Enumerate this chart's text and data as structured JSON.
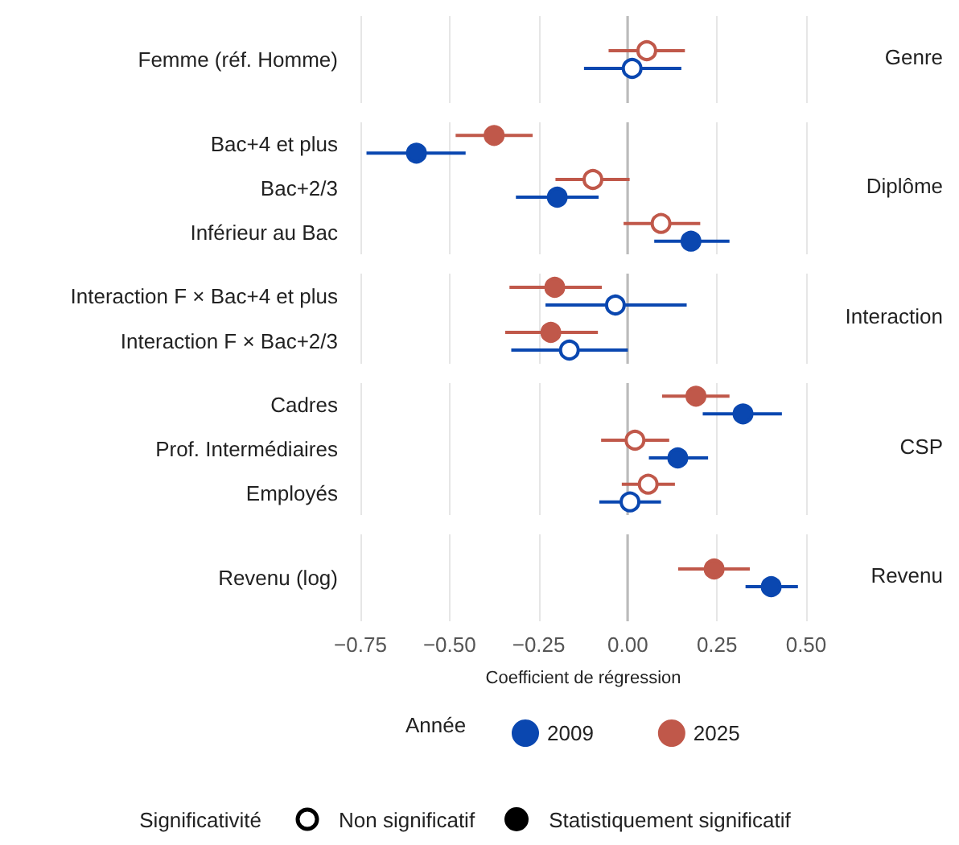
{
  "chart_data": [
    {
      "type": "scatter",
      "orientation": "horizontal",
      "categories": [
        "Femme (réf. Homme)"
      ],
      "y2label": "Genre",
      "xlim": [
        -0.75,
        0.5
      ],
      "xticks": [
        -0.75,
        -0.5,
        -0.25,
        0,
        0.25,
        0.5
      ],
      "tick_labels": "y",
      "grid": "x",
      "marker": "circle",
      "ref_lines": [
        {
          "axis": "x",
          "value": 0,
          "color": "#bbbbbb"
        }
      ],
      "series": [
        {
          "color": "#0a47b0",
          "values": [
            0.012
          ],
          "errors": [
            [
              -0.123,
              0.15
            ]
          ],
          "colors": [
            "#ffffff"
          ]
        },
        {
          "color": "#c0584a",
          "values": [
            0.053
          ],
          "errors": [
            [
              -0.054,
              0.16
            ]
          ],
          "colors": [
            "#ffffff"
          ]
        }
      ]
    },
    {
      "type": "scatter",
      "orientation": "horizontal",
      "categories": [
        "Bac+4 et plus",
        "Bac+2/3",
        "Inférieur au Bac"
      ],
      "y2label": "Diplôme",
      "xlim": [
        -0.75,
        0.5
      ],
      "xticks": [
        -0.75,
        -0.5,
        -0.25,
        0,
        0.25,
        0.5
      ],
      "tick_labels": "y",
      "grid": "x",
      "marker": "circle",
      "ref_lines": [
        {
          "axis": "x",
          "value": 0,
          "color": "#bbbbbb"
        }
      ],
      "series": [
        {
          "color": "#0a47b0",
          "values": [
            -0.593,
            -0.198,
            0.177
          ],
          "errors": [
            [
              -0.733,
              -0.455
            ],
            [
              -0.314,
              -0.082
            ],
            [
              0.074,
              0.285
            ]
          ],
          "colors": [
            "#0a47b0",
            "#0a47b0",
            "#0a47b0"
          ]
        },
        {
          "color": "#c0584a",
          "values": [
            -0.375,
            -0.098,
            0.093
          ],
          "errors": [
            [
              -0.483,
              -0.267
            ],
            [
              -0.203,
              0.005
            ],
            [
              -0.012,
              0.203
            ]
          ],
          "colors": [
            "#c0584a",
            "#ffffff",
            "#ffffff"
          ]
        }
      ]
    },
    {
      "type": "scatter",
      "orientation": "horizontal",
      "categories": [
        "Interaction F × Bac+4 et plus",
        "Interaction F × Bac+2/3"
      ],
      "y2label": "Interaction",
      "xlim": [
        -0.75,
        0.5
      ],
      "xticks": [
        -0.75,
        -0.5,
        -0.25,
        0,
        0.25,
        0.5
      ],
      "tick_labels": "y",
      "grid": "x",
      "marker": "circle",
      "ref_lines": [
        {
          "axis": "x",
          "value": 0,
          "color": "#bbbbbb"
        }
      ],
      "series": [
        {
          "color": "#0a47b0",
          "values": [
            -0.035,
            -0.164
          ],
          "errors": [
            [
              -0.231,
              0.165
            ],
            [
              -0.327,
              0.0
            ]
          ],
          "colors": [
            "#ffffff",
            "#ffffff"
          ]
        },
        {
          "color": "#c0584a",
          "values": [
            -0.205,
            -0.216
          ],
          "errors": [
            [
              -0.332,
              -0.073
            ],
            [
              -0.344,
              -0.084
            ]
          ],
          "colors": [
            "#c0584a",
            "#c0584a"
          ]
        }
      ]
    },
    {
      "type": "scatter",
      "orientation": "horizontal",
      "categories": [
        "Cadres",
        "Prof. Intermédiaires",
        "Employés"
      ],
      "y2label": "CSP",
      "xlim": [
        -0.75,
        0.5
      ],
      "xticks": [
        -0.75,
        -0.5,
        -0.25,
        0,
        0.25,
        0.5
      ],
      "tick_labels": "y",
      "grid": "x",
      "marker": "circle",
      "ref_lines": [
        {
          "axis": "x",
          "value": 0,
          "color": "#bbbbbb"
        }
      ],
      "series": [
        {
          "color": "#0a47b0",
          "values": [
            0.323,
            0.14,
            0.006
          ],
          "errors": [
            [
              0.21,
              0.432
            ],
            [
              0.059,
              0.225
            ],
            [
              -0.08,
              0.093
            ]
          ],
          "colors": [
            "#0a47b0",
            "#0a47b0",
            "#ffffff"
          ]
        },
        {
          "color": "#c0584a",
          "values": [
            0.191,
            0.02,
            0.057
          ],
          "errors": [
            [
              0.096,
              0.285
            ],
            [
              -0.075,
              0.116
            ],
            [
              -0.017,
              0.132
            ]
          ],
          "colors": [
            "#c0584a",
            "#ffffff",
            "#ffffff"
          ]
        }
      ]
    },
    {
      "type": "scatter",
      "orientation": "horizontal",
      "categories": [
        "Revenu (log)"
      ],
      "y2label": "Revenu",
      "xlabel": "Coefficient de régression",
      "xlim": [
        -0.75,
        0.5
      ],
      "xticks": [
        {
          "value": -0.75,
          "label": "−0.75"
        },
        {
          "value": -0.5,
          "label": "−0.50"
        },
        {
          "value": -0.25,
          "label": "−0.25"
        },
        {
          "value": 0,
          "label": "0.00"
        },
        {
          "value": 0.25,
          "label": "0.25"
        },
        {
          "value": 0.5,
          "label": "0.50"
        }
      ],
      "grid": "x",
      "marker": "circle",
      "legend": "bottom",
      "legend_title": "Année",
      "ref_lines": [
        {
          "axis": "x",
          "value": 0,
          "color": "#bbbbbb"
        }
      ],
      "series": [
        {
          "name": "2009",
          "color": "#0a47b0",
          "values": [
            0.402
          ],
          "errors": [
            [
              0.33,
              0.477
            ]
          ],
          "colors": [
            "#0a47b0"
          ]
        },
        {
          "name": "2025",
          "color": "#c0584a",
          "values": [
            0.242
          ],
          "errors": [
            [
              0.141,
              0.342
            ]
          ],
          "colors": [
            "#c0584a"
          ]
        }
      ]
    },
    {
      "type": "other",
      "title": "Significativité",
      "annotations": [
        "Non significatif",
        "Statistiquement significatif"
      ]
    }
  ]
}
